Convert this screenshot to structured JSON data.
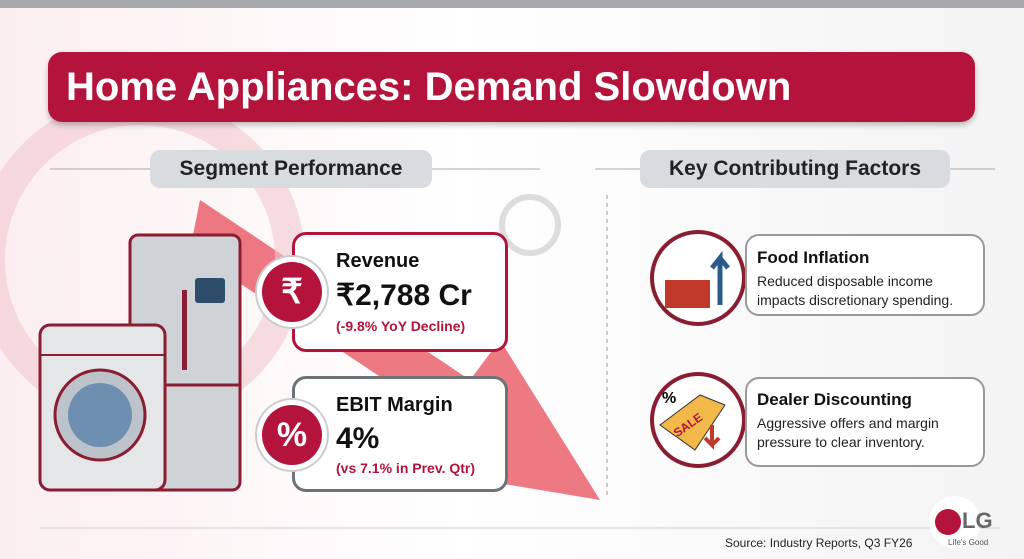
{
  "header": {
    "title": "Home Appliances: Demand Slowdown"
  },
  "segment": {
    "heading": "Segment Performance",
    "metrics": [
      {
        "icon": "₹",
        "label": "Revenue",
        "value": "₹2,788 Cr",
        "note": "(-9.8% YoY Decline)"
      },
      {
        "icon": "%",
        "label": "EBIT Margin",
        "value": "4%",
        "note": "(vs 7.1% in Prev. Qtr)"
      }
    ]
  },
  "factors": {
    "heading": "Key Contributing Factors",
    "items": [
      {
        "title": "Food Inflation",
        "text": "Reduced disposable income impacts discretionary spending."
      },
      {
        "title": "Dealer Discounting",
        "text": "Aggressive offers and margin pressure to clear inventory.",
        "icon_texts": [
          "%",
          "SALE"
        ]
      }
    ]
  },
  "footer": {
    "source": "Source: Industry Reports, Q3 FY26",
    "logo": "LG",
    "tagline": "Life's Good"
  }
}
